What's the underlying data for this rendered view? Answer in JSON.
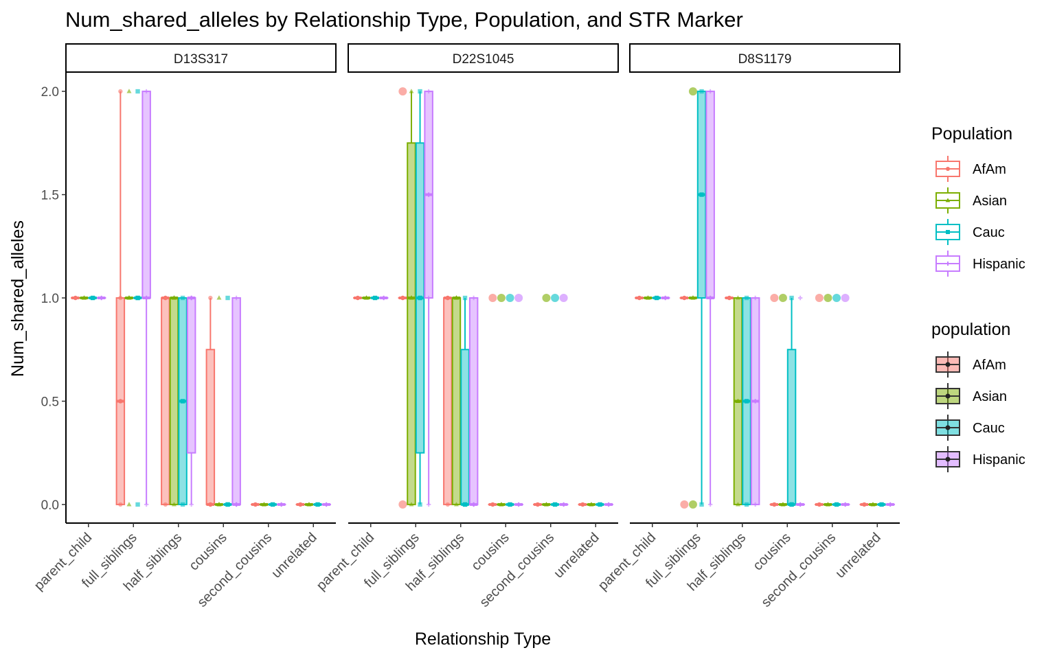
{
  "chart_data": {
    "type": "boxplot",
    "title": "Num_shared_alleles by Relationship Type, Population, and STR Marker",
    "xlabel": "Relationship Type",
    "ylabel": "Num_shared_alleles",
    "ylim": [
      -0.09,
      2.09
    ],
    "yticks": [
      "0.0",
      "0.5",
      "1.0",
      "1.5",
      "2.0"
    ],
    "categories": [
      "parent_child",
      "full_siblings",
      "half_siblings",
      "cousins",
      "second_cousins",
      "unrelated"
    ],
    "populations": [
      "AfAm",
      "Asian",
      "Cauc",
      "Hispanic"
    ],
    "colors": {
      "AfAm": "#F8766D",
      "Asian": "#7CAE00",
      "Cauc": "#00BFC4",
      "Hispanic": "#C77CFF"
    },
    "shapes": {
      "AfAm": "circle",
      "Asian": "triangle",
      "Cauc": "square",
      "Hispanic": "cross"
    },
    "legends": [
      {
        "title": "Population",
        "style": "colored",
        "items": [
          "AfAm",
          "Asian",
          "Cauc",
          "Hispanic"
        ]
      },
      {
        "title": "population",
        "style": "filled",
        "items": [
          "AfAm",
          "Asian",
          "Cauc",
          "Hispanic"
        ]
      }
    ],
    "panels": [
      {
        "marker": "D13S317",
        "boxes": {
          "parent_child": {
            "AfAm": [
              1,
              1,
              1,
              1,
              1
            ],
            "Asian": [
              1,
              1,
              1,
              1,
              1
            ],
            "Cauc": [
              1,
              1,
              1,
              1,
              1
            ],
            "Hispanic": [
              1,
              1,
              1,
              1,
              1
            ]
          },
          "full_siblings": {
            "AfAm": [
              0,
              0,
              0.5,
              1,
              2
            ],
            "Asian": [
              1,
              1,
              1,
              1,
              1
            ],
            "Cauc": [
              1,
              1,
              1,
              1,
              1
            ],
            "Hispanic": [
              0,
              1,
              1,
              2,
              2
            ]
          },
          "half_siblings": {
            "AfAm": [
              0,
              0,
              1,
              1,
              1
            ],
            "Asian": [
              0,
              0,
              1,
              1,
              1
            ],
            "Cauc": [
              0,
              0,
              0.5,
              1,
              1
            ],
            "Hispanic": [
              0,
              0.25,
              1,
              1,
              1
            ]
          },
          "cousins": {
            "AfAm": [
              0,
              0,
              0,
              0.75,
              1
            ],
            "Asian": [
              0,
              0,
              0,
              0,
              0
            ],
            "Cauc": [
              0,
              0,
              0,
              0,
              0
            ],
            "Hispanic": [
              0,
              0,
              0,
              1,
              1
            ]
          },
          "second_cousins": {
            "AfAm": [
              0,
              0,
              0,
              0,
              0
            ],
            "Asian": [
              0,
              0,
              0,
              0,
              0
            ],
            "Cauc": [
              0,
              0,
              0,
              0,
              0
            ],
            "Hispanic": [
              0,
              0,
              0,
              0,
              0
            ]
          },
          "unrelated": {
            "AfAm": [
              0,
              0,
              0,
              0,
              0
            ],
            "Asian": [
              0,
              0,
              0,
              0,
              0
            ],
            "Cauc": [
              0,
              0,
              0,
              0,
              0
            ],
            "Hispanic": [
              0,
              0,
              0,
              0,
              0
            ]
          }
        },
        "points": [
          {
            "cat": "full_siblings",
            "pop": "AfAm",
            "y": 2
          },
          {
            "cat": "full_siblings",
            "pop": "AfAm",
            "y": 1
          },
          {
            "cat": "full_siblings",
            "pop": "AfAm",
            "y": 0
          },
          {
            "cat": "full_siblings",
            "pop": "Asian",
            "y": 2
          },
          {
            "cat": "full_siblings",
            "pop": "Asian",
            "y": 1
          },
          {
            "cat": "full_siblings",
            "pop": "Asian",
            "y": 0
          },
          {
            "cat": "full_siblings",
            "pop": "Cauc",
            "y": 2
          },
          {
            "cat": "full_siblings",
            "pop": "Cauc",
            "y": 1
          },
          {
            "cat": "full_siblings",
            "pop": "Cauc",
            "y": 0
          },
          {
            "cat": "full_siblings",
            "pop": "Hispanic",
            "y": 2
          },
          {
            "cat": "full_siblings",
            "pop": "Hispanic",
            "y": 0
          },
          {
            "cat": "half_siblings",
            "pop": "AfAm",
            "y": 1
          },
          {
            "cat": "half_siblings",
            "pop": "AfAm",
            "y": 0
          },
          {
            "cat": "half_siblings",
            "pop": "Asian",
            "y": 1
          },
          {
            "cat": "half_siblings",
            "pop": "Asian",
            "y": 0
          },
          {
            "cat": "half_siblings",
            "pop": "Cauc",
            "y": 1
          },
          {
            "cat": "half_siblings",
            "pop": "Cauc",
            "y": 0
          },
          {
            "cat": "half_siblings",
            "pop": "Hispanic",
            "y": 1
          },
          {
            "cat": "half_siblings",
            "pop": "Hispanic",
            "y": 0
          },
          {
            "cat": "cousins",
            "pop": "AfAm",
            "y": 1
          },
          {
            "cat": "cousins",
            "pop": "AfAm",
            "y": 0
          },
          {
            "cat": "cousins",
            "pop": "Asian",
            "y": 1
          },
          {
            "cat": "cousins",
            "pop": "Asian",
            "y": 0
          },
          {
            "cat": "cousins",
            "pop": "Cauc",
            "y": 1
          },
          {
            "cat": "cousins",
            "pop": "Cauc",
            "y": 0
          },
          {
            "cat": "cousins",
            "pop": "Hispanic",
            "y": 1
          },
          {
            "cat": "cousins",
            "pop": "Hispanic",
            "y": 0
          }
        ]
      },
      {
        "marker": "D22S1045",
        "boxes": {
          "parent_child": {
            "AfAm": [
              1,
              1,
              1,
              1,
              1
            ],
            "Asian": [
              1,
              1,
              1,
              1,
              1
            ],
            "Cauc": [
              1,
              1,
              1,
              1,
              1
            ],
            "Hispanic": [
              1,
              1,
              1,
              1,
              1
            ]
          },
          "full_siblings": {
            "AfAm": [
              1,
              1,
              1,
              1,
              1
            ],
            "Asian": [
              0,
              0,
              1,
              1.75,
              2
            ],
            "Cauc": [
              0,
              0.25,
              1,
              1.75,
              2
            ],
            "Hispanic": [
              0,
              1,
              1.5,
              2,
              2
            ]
          },
          "half_siblings": {
            "AfAm": [
              0,
              0,
              1,
              1,
              1
            ],
            "Asian": [
              0,
              0,
              1,
              1,
              1
            ],
            "Cauc": [
              0,
              0,
              0,
              0.75,
              1
            ],
            "Hispanic": [
              0,
              0,
              0,
              1,
              1
            ]
          },
          "cousins": {
            "AfAm": [
              0,
              0,
              0,
              0,
              0
            ],
            "Asian": [
              0,
              0,
              0,
              0,
              0
            ],
            "Cauc": [
              0,
              0,
              0,
              0,
              0
            ],
            "Hispanic": [
              0,
              0,
              0,
              0,
              0
            ]
          },
          "second_cousins": {
            "AfAm": [
              0,
              0,
              0,
              0,
              0
            ],
            "Asian": [
              0,
              0,
              0,
              0,
              0
            ],
            "Cauc": [
              0,
              0,
              0,
              0,
              0
            ],
            "Hispanic": [
              0,
              0,
              0,
              0,
              0
            ]
          },
          "unrelated": {
            "AfAm": [
              0,
              0,
              0,
              0,
              0
            ],
            "Asian": [
              0,
              0,
              0,
              0,
              0
            ],
            "Cauc": [
              0,
              0,
              0,
              0,
              0
            ],
            "Hispanic": [
              0,
              0,
              0,
              0,
              0
            ]
          }
        },
        "points": [
          {
            "cat": "full_siblings",
            "pop": "AfAm",
            "y": 2,
            "big": true
          },
          {
            "cat": "full_siblings",
            "pop": "AfAm",
            "y": 1
          },
          {
            "cat": "full_siblings",
            "pop": "AfAm",
            "y": 0,
            "big": true
          },
          {
            "cat": "full_siblings",
            "pop": "Asian",
            "y": 2
          },
          {
            "cat": "full_siblings",
            "pop": "Asian",
            "y": 1
          },
          {
            "cat": "full_siblings",
            "pop": "Asian",
            "y": 0
          },
          {
            "cat": "full_siblings",
            "pop": "Cauc",
            "y": 2
          },
          {
            "cat": "full_siblings",
            "pop": "Cauc",
            "y": 1
          },
          {
            "cat": "full_siblings",
            "pop": "Cauc",
            "y": 0
          },
          {
            "cat": "full_siblings",
            "pop": "Hispanic",
            "y": 2
          },
          {
            "cat": "full_siblings",
            "pop": "Hispanic",
            "y": 1
          },
          {
            "cat": "full_siblings",
            "pop": "Hispanic",
            "y": 0
          },
          {
            "cat": "half_siblings",
            "pop": "AfAm",
            "y": 1
          },
          {
            "cat": "half_siblings",
            "pop": "AfAm",
            "y": 0
          },
          {
            "cat": "half_siblings",
            "pop": "Asian",
            "y": 1
          },
          {
            "cat": "half_siblings",
            "pop": "Asian",
            "y": 0
          },
          {
            "cat": "half_siblings",
            "pop": "Cauc",
            "y": 1
          },
          {
            "cat": "half_siblings",
            "pop": "Cauc",
            "y": 0
          },
          {
            "cat": "half_siblings",
            "pop": "Hispanic",
            "y": 1
          },
          {
            "cat": "half_siblings",
            "pop": "Hispanic",
            "y": 0
          },
          {
            "cat": "cousins",
            "pop": "AfAm",
            "y": 1,
            "big": true
          },
          {
            "cat": "cousins",
            "pop": "Asian",
            "y": 1,
            "big": true
          },
          {
            "cat": "cousins",
            "pop": "Cauc",
            "y": 1,
            "big": true
          },
          {
            "cat": "cousins",
            "pop": "Hispanic",
            "y": 1,
            "big": true
          },
          {
            "cat": "second_cousins",
            "pop": "Asian",
            "y": 1,
            "big": true
          },
          {
            "cat": "second_cousins",
            "pop": "Cauc",
            "y": 1,
            "big": true
          },
          {
            "cat": "second_cousins",
            "pop": "Hispanic",
            "y": 1,
            "big": true
          }
        ]
      },
      {
        "marker": "D8S1179",
        "boxes": {
          "parent_child": {
            "AfAm": [
              1,
              1,
              1,
              1,
              1
            ],
            "Asian": [
              1,
              1,
              1,
              1,
              1
            ],
            "Cauc": [
              1,
              1,
              1,
              1,
              1
            ],
            "Hispanic": [
              1,
              1,
              1,
              1,
              1
            ]
          },
          "full_siblings": {
            "AfAm": [
              1,
              1,
              1,
              1,
              1
            ],
            "Asian": [
              1,
              1,
              1,
              1,
              1
            ],
            "Cauc": [
              0,
              1,
              1.5,
              2,
              2
            ],
            "Hispanic": [
              0,
              1,
              1,
              2,
              2
            ]
          },
          "half_siblings": {
            "AfAm": [
              1,
              1,
              1,
              1,
              1
            ],
            "Asian": [
              0,
              0,
              0.5,
              1,
              1
            ],
            "Cauc": [
              0,
              0,
              0.5,
              1,
              1
            ],
            "Hispanic": [
              0,
              0,
              0.5,
              1,
              1
            ]
          },
          "cousins": {
            "AfAm": [
              0,
              0,
              0,
              0,
              0
            ],
            "Asian": [
              0,
              0,
              0,
              0,
              0
            ],
            "Cauc": [
              0,
              0,
              0,
              0.75,
              1
            ],
            "Hispanic": [
              0,
              0,
              0,
              0,
              0
            ]
          },
          "second_cousins": {
            "AfAm": [
              0,
              0,
              0,
              0,
              0
            ],
            "Asian": [
              0,
              0,
              0,
              0,
              0
            ],
            "Cauc": [
              0,
              0,
              0,
              0,
              0
            ],
            "Hispanic": [
              0,
              0,
              0,
              0,
              0
            ]
          },
          "unrelated": {
            "AfAm": [
              0,
              0,
              0,
              0,
              0
            ],
            "Asian": [
              0,
              0,
              0,
              0,
              0
            ],
            "Cauc": [
              0,
              0,
              0,
              0,
              0
            ],
            "Hispanic": [
              0,
              0,
              0,
              0,
              0
            ]
          }
        },
        "points": [
          {
            "cat": "full_siblings",
            "pop": "AfAm",
            "y": 0,
            "big": true
          },
          {
            "cat": "full_siblings",
            "pop": "Asian",
            "y": 2,
            "big": true
          },
          {
            "cat": "full_siblings",
            "pop": "Asian",
            "y": 0,
            "big": true
          },
          {
            "cat": "full_siblings",
            "pop": "Cauc",
            "y": 2
          },
          {
            "cat": "full_siblings",
            "pop": "Cauc",
            "y": 0
          },
          {
            "cat": "full_siblings",
            "pop": "Hispanic",
            "y": 2
          },
          {
            "cat": "full_siblings",
            "pop": "Hispanic",
            "y": 0
          },
          {
            "cat": "half_siblings",
            "pop": "Asian",
            "y": 1
          },
          {
            "cat": "half_siblings",
            "pop": "Asian",
            "y": 0
          },
          {
            "cat": "half_siblings",
            "pop": "Cauc",
            "y": 1
          },
          {
            "cat": "half_siblings",
            "pop": "Cauc",
            "y": 0
          },
          {
            "cat": "half_siblings",
            "pop": "Hispanic",
            "y": 1
          },
          {
            "cat": "half_siblings",
            "pop": "Hispanic",
            "y": 0
          },
          {
            "cat": "cousins",
            "pop": "AfAm",
            "y": 1,
            "big": true
          },
          {
            "cat": "cousins",
            "pop": "Asian",
            "y": 1,
            "big": true
          },
          {
            "cat": "cousins",
            "pop": "Cauc",
            "y": 1
          },
          {
            "cat": "cousins",
            "pop": "Cauc",
            "y": 0
          },
          {
            "cat": "cousins",
            "pop": "Hispanic",
            "y": 1
          },
          {
            "cat": "second_cousins",
            "pop": "AfAm",
            "y": 1,
            "big": true
          },
          {
            "cat": "second_cousins",
            "pop": "Asian",
            "y": 1,
            "big": true
          },
          {
            "cat": "second_cousins",
            "pop": "Cauc",
            "y": 1,
            "big": true
          },
          {
            "cat": "second_cousins",
            "pop": "Hispanic",
            "y": 1,
            "big": true
          }
        ]
      }
    ]
  }
}
